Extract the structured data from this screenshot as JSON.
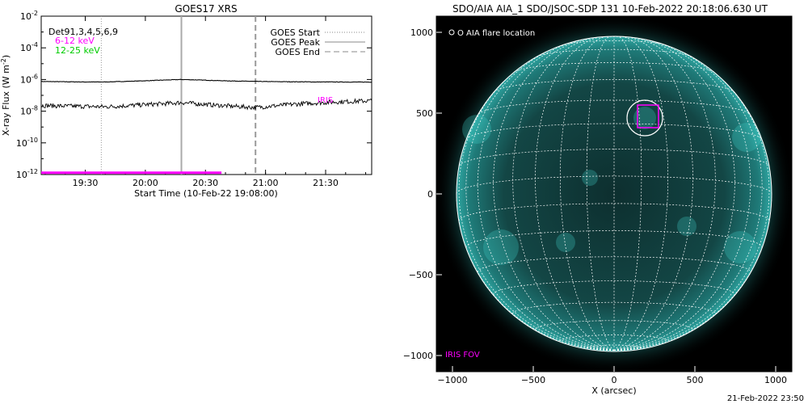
{
  "chart_data": [
    {
      "type": "line",
      "title": "GOES17 XRS",
      "xlabel": "Start Time (10-Feb-22 19:08:00)",
      "ylabel": "X-ray Flux (W m",
      "ylabel_sup": "-2",
      "ylabel_tail": ")",
      "x_range": [
        "19:08",
        "21:53"
      ],
      "ylim": [
        1e-12,
        0.01
      ],
      "yscale": "log",
      "x_ticks": [
        "19:30",
        "20:00",
        "20:30",
        "21:00",
        "21:30"
      ],
      "y_ticks": [
        {
          "base": "10",
          "exp": "-2"
        },
        {
          "base": "10",
          "exp": "-4"
        },
        {
          "base": "10",
          "exp": "-6"
        },
        {
          "base": "10",
          "exp": "-8"
        },
        {
          "base": "10",
          "exp": "-10"
        },
        {
          "base": "10",
          "exp": "-12"
        }
      ],
      "annotations": {
        "det_label": "Det91,3,4,5,6,9",
        "band_low": "6-12 keV",
        "band_high": "12-25 keV",
        "iris_marker": "IRIS"
      },
      "legend": {
        "placement": "top-right",
        "entries": [
          {
            "label": "GOES Start",
            "style": "dotted"
          },
          {
            "label": "GOES Peak",
            "style": "solid"
          },
          {
            "label": "GOES End",
            "style": "dashed"
          }
        ]
      },
      "event_times": {
        "start": "19:38",
        "peak": "20:18",
        "end": "20:55"
      },
      "iris_interval": {
        "start": "19:08",
        "end": "20:38",
        "y": 1.3e-12
      },
      "series": [
        {
          "name": "6-12 keV",
          "color": "#000000",
          "x": [
            "19:08",
            "19:20",
            "19:30",
            "19:40",
            "19:50",
            "20:00",
            "20:10",
            "20:18",
            "20:25",
            "20:35",
            "20:45",
            "20:55",
            "21:05",
            "21:15",
            "21:25",
            "21:35",
            "21:45",
            "21:53"
          ],
          "values": [
            7.5e-07,
            7.2e-07,
            7e-07,
            7e-07,
            7.6e-07,
            8.3e-07,
            9.3e-07,
            1e-06,
            9.5e-07,
            8.6e-07,
            8e-07,
            7.6e-07,
            7.3e-07,
            7.2e-07,
            7e-07,
            7e-07,
            6.9e-07,
            6.9e-07
          ]
        },
        {
          "name": "12-25 keV",
          "color": "#000000",
          "x": [
            "19:08",
            "19:20",
            "19:30",
            "19:40",
            "19:50",
            "20:00",
            "20:10",
            "20:18",
            "20:25",
            "20:35",
            "20:45",
            "20:55",
            "21:05",
            "21:15",
            "21:25",
            "21:35",
            "21:45",
            "21:53"
          ],
          "values": [
            2.3e-08,
            2.1e-08,
            2e-08,
            1.9e-08,
            2.2e-08,
            2.6e-08,
            3e-08,
            3.5e-08,
            3e-08,
            2.4e-08,
            2e-08,
            1.7e-08,
            2.2e-08,
            2.8e-08,
            3.3e-08,
            3.8e-08,
            4.2e-08,
            4.6e-08
          ]
        }
      ]
    },
    {
      "type": "heatmap",
      "title": "SDO/AIA AIA_1 SDO/JSOC-SDP 131 10-Feb-2022 20:18:06.630 UT",
      "xlabel": "X (arcsec)",
      "ylabel": "",
      "xlim": [
        -1100,
        1100
      ],
      "ylim": [
        -1100,
        1100
      ],
      "x_ticks": [
        -1000,
        -500,
        0,
        500,
        1000
      ],
      "y_ticks": [
        1000,
        500,
        0,
        -500,
        -1000
      ],
      "x_tick_labels": [
        "−1000",
        "−500",
        "0",
        "500",
        "1000"
      ],
      "y_tick_labels": [
        "1000",
        "500",
        "0",
        "−500",
        "−1000"
      ],
      "grid": true,
      "disk_radius_arcsec": 975,
      "legend_text": "O AIA flare location",
      "fov_label": "IRIS FOV",
      "flare": {
        "x": 190,
        "y": 470,
        "radius": 110
      },
      "iris_fov": {
        "x": 210,
        "y": 480,
        "width": 130,
        "height": 140
      },
      "timestamp": "21-Feb-2022 23:50",
      "colors": {
        "fov": "#ff00ff",
        "disk": "#1f8a88",
        "background": "#000000"
      }
    }
  ]
}
